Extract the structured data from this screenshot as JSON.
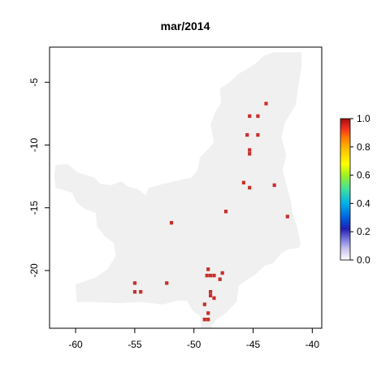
{
  "chart_data": {
    "type": "heatmap",
    "title": "mar/2014",
    "xlabel": "",
    "ylabel": "",
    "xlim": [
      -62.2,
      -39.2
    ],
    "ylim": [
      -24.6,
      -2.2
    ],
    "x_ticks": [
      -60,
      -55,
      -50,
      -45,
      -40
    ],
    "y_ticks": [
      -5,
      -10,
      -15,
      -20
    ],
    "cell_size": 0.25,
    "colors": {
      "land": "#f0f0f0",
      "value_high": "#c8302c",
      "frame": "#000000"
    },
    "region_outline": [
      [
        -42.1,
        -2.6
      ],
      [
        -40.9,
        -2.6
      ],
      [
        -40.9,
        -3.8
      ],
      [
        -41.2,
        -5.4
      ],
      [
        -41.4,
        -6.8
      ],
      [
        -42.3,
        -8.2
      ],
      [
        -42.6,
        -9.4
      ],
      [
        -42.2,
        -10.8
      ],
      [
        -42.5,
        -12.0
      ],
      [
        -42.1,
        -13.5
      ],
      [
        -41.8,
        -14.5
      ],
      [
        -41.6,
        -15.6
      ],
      [
        -41.3,
        -16.5
      ],
      [
        -41.0,
        -17.8
      ],
      [
        -41.1,
        -18.2
      ],
      [
        -42.0,
        -18.3
      ],
      [
        -42.6,
        -18.6
      ],
      [
        -43.3,
        -19.4
      ],
      [
        -44.0,
        -19.6
      ],
      [
        -44.9,
        -20.4
      ],
      [
        -45.6,
        -20.8
      ],
      [
        -46.2,
        -21.2
      ],
      [
        -46.4,
        -22.5
      ],
      [
        -47.2,
        -23.3
      ],
      [
        -48.2,
        -24.0
      ],
      [
        -48.6,
        -24.6
      ],
      [
        -49.4,
        -24.6
      ],
      [
        -49.5,
        -23.6
      ],
      [
        -50.1,
        -23.2
      ],
      [
        -50.6,
        -22.4
      ],
      [
        -51.4,
        -22.4
      ],
      [
        -52.6,
        -22.7
      ],
      [
        -54.5,
        -22.5
      ],
      [
        -56.4,
        -22.6
      ],
      [
        -58.6,
        -22.5
      ],
      [
        -59.9,
        -22.5
      ],
      [
        -60.0,
        -21.1
      ],
      [
        -58.4,
        -20.6
      ],
      [
        -57.3,
        -19.9
      ],
      [
        -56.6,
        -18.8
      ],
      [
        -56.8,
        -17.8
      ],
      [
        -57.5,
        -17.3
      ],
      [
        -58.2,
        -16.5
      ],
      [
        -58.3,
        -15.4
      ],
      [
        -59.2,
        -15.1
      ],
      [
        -59.9,
        -14.6
      ],
      [
        -60.3,
        -13.8
      ],
      [
        -61.0,
        -13.6
      ],
      [
        -61.7,
        -13.4
      ],
      [
        -61.8,
        -12.4
      ],
      [
        -61.7,
        -11.6
      ],
      [
        -60.7,
        -11.5
      ],
      [
        -59.8,
        -12.2
      ],
      [
        -58.4,
        -12.6
      ],
      [
        -57.9,
        -13.1
      ],
      [
        -57.0,
        -13.2
      ],
      [
        -56.1,
        -12.9
      ],
      [
        -55.6,
        -13.3
      ],
      [
        -54.8,
        -13.5
      ],
      [
        -54.1,
        -14.0
      ],
      [
        -53.8,
        -13.4
      ],
      [
        -52.6,
        -13.1
      ],
      [
        -51.2,
        -12.8
      ],
      [
        -50.2,
        -12.6
      ],
      [
        -49.7,
        -12.0
      ],
      [
        -49.5,
        -11.0
      ],
      [
        -48.9,
        -10.4
      ],
      [
        -48.3,
        -9.8
      ],
      [
        -48.6,
        -8.4
      ],
      [
        -48.2,
        -7.4
      ],
      [
        -47.7,
        -6.6
      ],
      [
        -47.8,
        -5.5
      ],
      [
        -47.0,
        -5.0
      ],
      [
        -46.2,
        -4.3
      ],
      [
        -45.6,
        -4.0
      ],
      [
        -44.8,
        -3.5
      ],
      [
        -44.1,
        -2.9
      ],
      [
        -43.2,
        -2.6
      ]
    ],
    "points": [
      {
        "x": -43.9,
        "y": -6.7,
        "value": 1
      },
      {
        "x": -45.3,
        "y": -7.7,
        "value": 1
      },
      {
        "x": -44.6,
        "y": -7.7,
        "value": 1
      },
      {
        "x": -45.5,
        "y": -9.2,
        "value": 1
      },
      {
        "x": -44.6,
        "y": -9.2,
        "value": 1
      },
      {
        "x": -45.3,
        "y": -10.4,
        "value": 1
      },
      {
        "x": -45.3,
        "y": -10.7,
        "value": 1
      },
      {
        "x": -45.8,
        "y": -13.0,
        "value": 1
      },
      {
        "x": -45.3,
        "y": -13.4,
        "value": 1
      },
      {
        "x": -43.2,
        "y": -13.2,
        "value": 1
      },
      {
        "x": -42.1,
        "y": -15.7,
        "value": 1
      },
      {
        "x": -47.3,
        "y": -15.3,
        "value": 1
      },
      {
        "x": -51.9,
        "y": -16.2,
        "value": 1
      },
      {
        "x": -48.8,
        "y": -19.9,
        "value": 1
      },
      {
        "x": -47.6,
        "y": -20.2,
        "value": 1
      },
      {
        "x": -48.9,
        "y": -20.4,
        "value": 1
      },
      {
        "x": -48.6,
        "y": -20.4,
        "value": 1
      },
      {
        "x": -48.3,
        "y": -20.4,
        "value": 1
      },
      {
        "x": -47.8,
        "y": -20.7,
        "value": 1
      },
      {
        "x": -55.0,
        "y": -21.0,
        "value": 1
      },
      {
        "x": -52.3,
        "y": -21.0,
        "value": 1
      },
      {
        "x": -55.0,
        "y": -21.7,
        "value": 1
      },
      {
        "x": -54.5,
        "y": -21.7,
        "value": 1
      },
      {
        "x": -48.6,
        "y": -21.7,
        "value": 1
      },
      {
        "x": -48.6,
        "y": -22.0,
        "value": 1
      },
      {
        "x": -48.3,
        "y": -22.2,
        "value": 1
      },
      {
        "x": -49.1,
        "y": -22.7,
        "value": 1
      },
      {
        "x": -48.8,
        "y": -23.4,
        "value": 1
      },
      {
        "x": -49.1,
        "y": -23.9,
        "value": 1
      },
      {
        "x": -48.8,
        "y": -23.9,
        "value": 1
      }
    ],
    "colorbar": {
      "min": 0.0,
      "max": 1.0,
      "ticks": [
        "0.0",
        "0.2",
        "0.4",
        "0.6",
        "0.8",
        "1.0"
      ],
      "stops": [
        {
          "v": 0.0,
          "c": "#ffffff"
        },
        {
          "v": 0.08,
          "c": "#c8c0ec"
        },
        {
          "v": 0.14,
          "c": "#8080e0"
        },
        {
          "v": 0.22,
          "c": "#2020b0"
        },
        {
          "v": 0.3,
          "c": "#0060e0"
        },
        {
          "v": 0.4,
          "c": "#00b0e8"
        },
        {
          "v": 0.5,
          "c": "#40e0a0"
        },
        {
          "v": 0.6,
          "c": "#a0f020"
        },
        {
          "v": 0.68,
          "c": "#ffff00"
        },
        {
          "v": 0.78,
          "c": "#ffc000"
        },
        {
          "v": 0.86,
          "c": "#ff8000"
        },
        {
          "v": 0.93,
          "c": "#f03020"
        },
        {
          "v": 1.0,
          "c": "#a01010"
        }
      ]
    }
  }
}
